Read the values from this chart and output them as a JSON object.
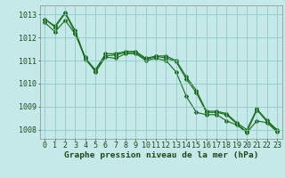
{
  "x": [
    0,
    1,
    2,
    3,
    4,
    5,
    6,
    7,
    8,
    9,
    10,
    11,
    12,
    13,
    14,
    15,
    16,
    17,
    18,
    19,
    20,
    21,
    22,
    23
  ],
  "line1": [
    1012.8,
    1012.5,
    1013.1,
    1012.3,
    1011.1,
    1010.6,
    1011.3,
    1011.3,
    1011.4,
    1011.4,
    1011.1,
    1011.2,
    1011.2,
    1011.0,
    1010.3,
    1009.7,
    1008.8,
    1008.8,
    1008.7,
    1008.3,
    1008.0,
    1008.9,
    1008.4,
    1008.0
  ],
  "line2": [
    1012.8,
    1012.45,
    1013.05,
    1012.2,
    1011.05,
    1010.55,
    1011.2,
    1011.25,
    1011.35,
    1011.35,
    1011.05,
    1011.18,
    1011.12,
    1010.95,
    1010.2,
    1009.6,
    1008.75,
    1008.75,
    1008.65,
    1008.25,
    1007.9,
    1008.85,
    1008.35,
    1007.95
  ],
  "line3": [
    1012.65,
    1012.25,
    1012.75,
    1012.15,
    1011.15,
    1010.5,
    1011.15,
    1011.1,
    1011.3,
    1011.3,
    1011.0,
    1011.1,
    1011.0,
    1010.5,
    1009.45,
    1008.75,
    1008.65,
    1008.65,
    1008.38,
    1008.2,
    1007.88,
    1008.38,
    1008.3,
    1007.9
  ],
  "line_color": "#1a6b1a",
  "bg_color": "#c5e8e8",
  "grid_color": "#88c4c4",
  "xlabel": "Graphe pression niveau de la mer (hPa)",
  "ylim": [
    1007.6,
    1013.4
  ],
  "yticks": [
    1008,
    1009,
    1010,
    1011,
    1012,
    1013
  ],
  "xlabel_color": "#1a4a1a",
  "xlabel_fontsize": 6.8,
  "tick_fontsize": 6.0
}
